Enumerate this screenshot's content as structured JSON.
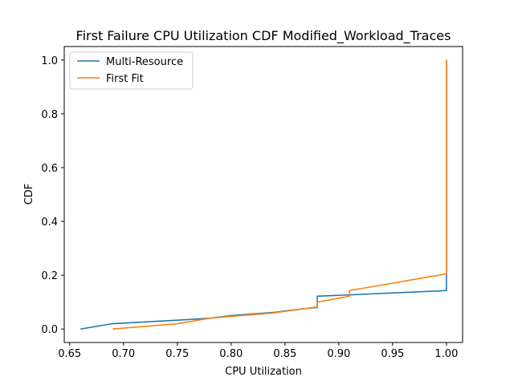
{
  "chart_data": {
    "type": "line",
    "title": "First Failure CPU Utilization CDF Modified_Workload_Traces",
    "xlabel": "CPU Utilization",
    "ylabel": "CDF",
    "xlim": [
      0.645,
      1.015
    ],
    "ylim": [
      -0.05,
      1.05
    ],
    "xticks": [
      0.65,
      0.7,
      0.75,
      0.8,
      0.85,
      0.9,
      0.95,
      1.0
    ],
    "xtick_labels": [
      "0.65",
      "0.70",
      "0.75",
      "0.80",
      "0.85",
      "0.90",
      "0.95",
      "1.00"
    ],
    "yticks": [
      0.0,
      0.2,
      0.4,
      0.6,
      0.8,
      1.0
    ],
    "ytick_labels": [
      "0.0",
      "0.2",
      "0.4",
      "0.6",
      "0.8",
      "1.0"
    ],
    "grid": false,
    "legend_position": "upper-left",
    "series": [
      {
        "name": "Multi-Resource",
        "color": "#1f77b4",
        "x": [
          0.66,
          0.69,
          0.75,
          0.78,
          0.8,
          0.84,
          0.87,
          0.88,
          0.88,
          0.91,
          1.0,
          1.0
        ],
        "y": [
          0.0,
          0.02,
          0.033,
          0.04,
          0.05,
          0.062,
          0.077,
          0.08,
          0.122,
          0.127,
          0.143,
          1.0
        ]
      },
      {
        "name": "First Fit",
        "color": "#ff7f0e",
        "x": [
          0.69,
          0.75,
          0.78,
          0.8,
          0.84,
          0.87,
          0.88,
          0.88,
          0.91,
          0.91,
          1.0,
          1.0
        ],
        "y": [
          0.0,
          0.02,
          0.04,
          0.047,
          0.06,
          0.077,
          0.082,
          0.1,
          0.122,
          0.143,
          0.205,
          1.0
        ]
      }
    ]
  }
}
